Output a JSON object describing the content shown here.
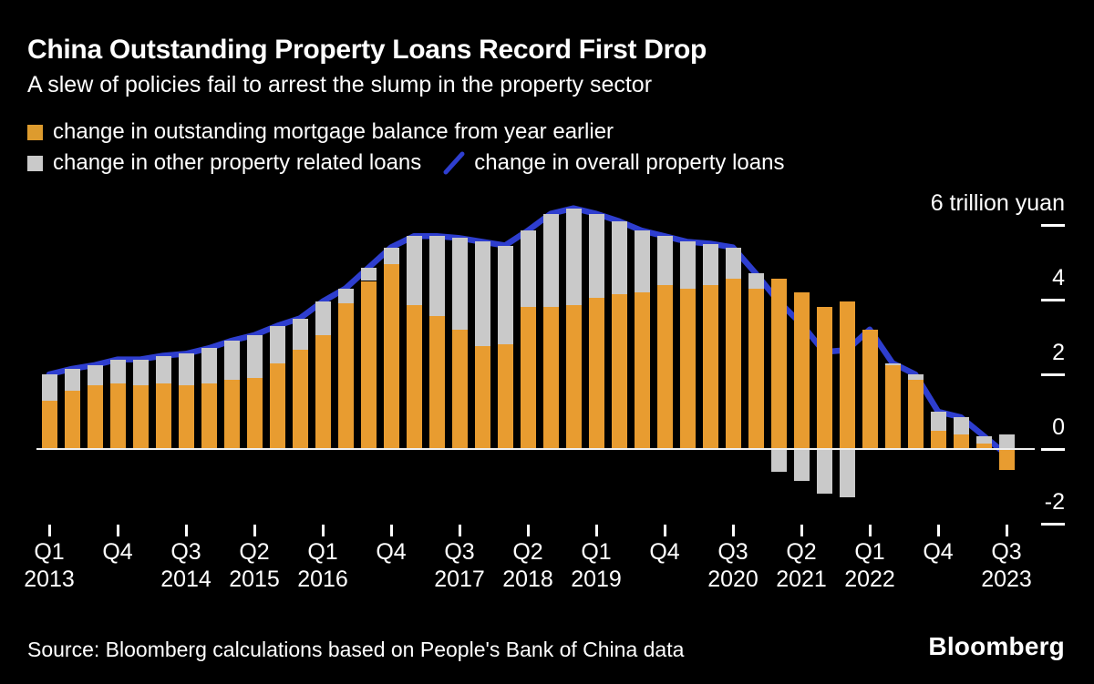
{
  "header": {
    "title": "China Outstanding Property Loans Record First Drop",
    "subtitle": "A slew of policies fail to arrest the slump in the property sector"
  },
  "legend": {
    "mortgage": {
      "label": "change in outstanding mortgage balance from year earlier",
      "color": "#dd9b2e"
    },
    "other": {
      "label": "change in other property related loans",
      "color": "#c9c9c9"
    },
    "overall": {
      "label": "change in overall property loans",
      "color": "#2e3ecf"
    }
  },
  "colors": {
    "background": "#000000",
    "text": "#ffffff",
    "bar_mortgage": "#e89c30",
    "bar_other": "#c9c9c9",
    "line_overall": "#2e3ecf",
    "zero_line": "#efefef"
  },
  "chart_data": {
    "type": "bar",
    "subtype": "stacked bars with line overlay",
    "unit": "trillion yuan",
    "categories": [
      "Q1 2013",
      "Q2 2013",
      "Q3 2013",
      "Q4 2013",
      "Q1 2014",
      "Q2 2014",
      "Q3 2014",
      "Q4 2014",
      "Q1 2015",
      "Q2 2015",
      "Q3 2015",
      "Q4 2015",
      "Q1 2016",
      "Q2 2016",
      "Q3 2016",
      "Q4 2016",
      "Q1 2017",
      "Q2 2017",
      "Q3 2017",
      "Q4 2017",
      "Q1 2018",
      "Q2 2018",
      "Q3 2018",
      "Q4 2018",
      "Q1 2019",
      "Q2 2019",
      "Q3 2019",
      "Q4 2019",
      "Q1 2020",
      "Q2 2020",
      "Q3 2020",
      "Q4 2020",
      "Q1 2021",
      "Q2 2021",
      "Q3 2021",
      "Q4 2021",
      "Q1 2022",
      "Q2 2022",
      "Q3 2022",
      "Q4 2022",
      "Q1 2023",
      "Q2 2023",
      "Q3 2023"
    ],
    "series": [
      {
        "name": "change in outstanding mortgage balance from year earlier",
        "type": "bar",
        "color": "#e89c30",
        "values": [
          1.3,
          1.55,
          1.7,
          1.75,
          1.7,
          1.75,
          1.7,
          1.75,
          1.85,
          1.9,
          2.3,
          2.65,
          3.05,
          3.9,
          4.5,
          4.95,
          3.85,
          3.55,
          3.2,
          2.75,
          2.8,
          3.8,
          3.8,
          3.85,
          4.05,
          4.15,
          4.2,
          4.4,
          4.3,
          4.4,
          4.55,
          4.3,
          4.55,
          4.2,
          3.8,
          3.95,
          3.2,
          2.25,
          1.85,
          0.5,
          0.4,
          0.15,
          -0.55
        ]
      },
      {
        "name": "change in other property related loans",
        "type": "bar",
        "color": "#c9c9c9",
        "values": [
          0.7,
          0.6,
          0.55,
          0.65,
          0.7,
          0.75,
          0.85,
          0.95,
          1.05,
          1.15,
          1.0,
          0.85,
          0.9,
          0.4,
          0.35,
          0.45,
          1.85,
          2.15,
          2.45,
          2.8,
          2.65,
          2.05,
          2.5,
          2.6,
          2.25,
          1.95,
          1.65,
          1.3,
          1.25,
          1.1,
          0.85,
          0.4,
          -0.6,
          -0.85,
          -1.2,
          -1.3,
          0.0,
          0.05,
          0.15,
          0.5,
          0.45,
          0.2,
          0.4
        ]
      },
      {
        "name": "change in overall property loans",
        "type": "line",
        "color": "#2e3ecf",
        "values": [
          2.0,
          2.15,
          2.25,
          2.4,
          2.4,
          2.5,
          2.55,
          2.7,
          2.9,
          3.05,
          3.3,
          3.5,
          3.95,
          4.3,
          4.85,
          5.4,
          5.7,
          5.7,
          5.65,
          5.55,
          5.45,
          5.85,
          6.3,
          6.45,
          6.3,
          6.1,
          5.85,
          5.7,
          5.55,
          5.5,
          5.4,
          4.7,
          3.95,
          3.35,
          2.6,
          2.65,
          3.2,
          2.3,
          2.0,
          1.0,
          0.85,
          0.35,
          -0.15
        ]
      }
    ],
    "y_axis": {
      "ticks": [
        6,
        4,
        2,
        0,
        -2
      ],
      "tick_labels": [
        "6 trillion yuan",
        "4",
        "2",
        "0",
        "-2"
      ],
      "range": [
        -2.6,
        6.8
      ],
      "grid": false,
      "side": "right"
    },
    "x_axis": {
      "tick_every_n_quarters": 3,
      "ticks": [
        {
          "q": "Q1",
          "year": "2013"
        },
        {
          "q": "Q4",
          "year": ""
        },
        {
          "q": "Q3",
          "year": "2014"
        },
        {
          "q": "Q2",
          "year": "2015"
        },
        {
          "q": "Q1",
          "year": "2016"
        },
        {
          "q": "Q4",
          "year": ""
        },
        {
          "q": "Q3",
          "year": "2017"
        },
        {
          "q": "Q2",
          "year": "2018"
        },
        {
          "q": "Q1",
          "year": "2019"
        },
        {
          "q": "Q4",
          "year": ""
        },
        {
          "q": "Q3",
          "year": "2020"
        },
        {
          "q": "Q2",
          "year": "2021"
        },
        {
          "q": "Q1",
          "year": "2022"
        },
        {
          "q": "Q4",
          "year": ""
        },
        {
          "q": "Q3",
          "year": "2023"
        }
      ]
    },
    "legend_position": "top-left"
  },
  "footer": {
    "source": "Source: Bloomberg calculations based on People's Bank of China data",
    "logo": "Bloomberg"
  }
}
